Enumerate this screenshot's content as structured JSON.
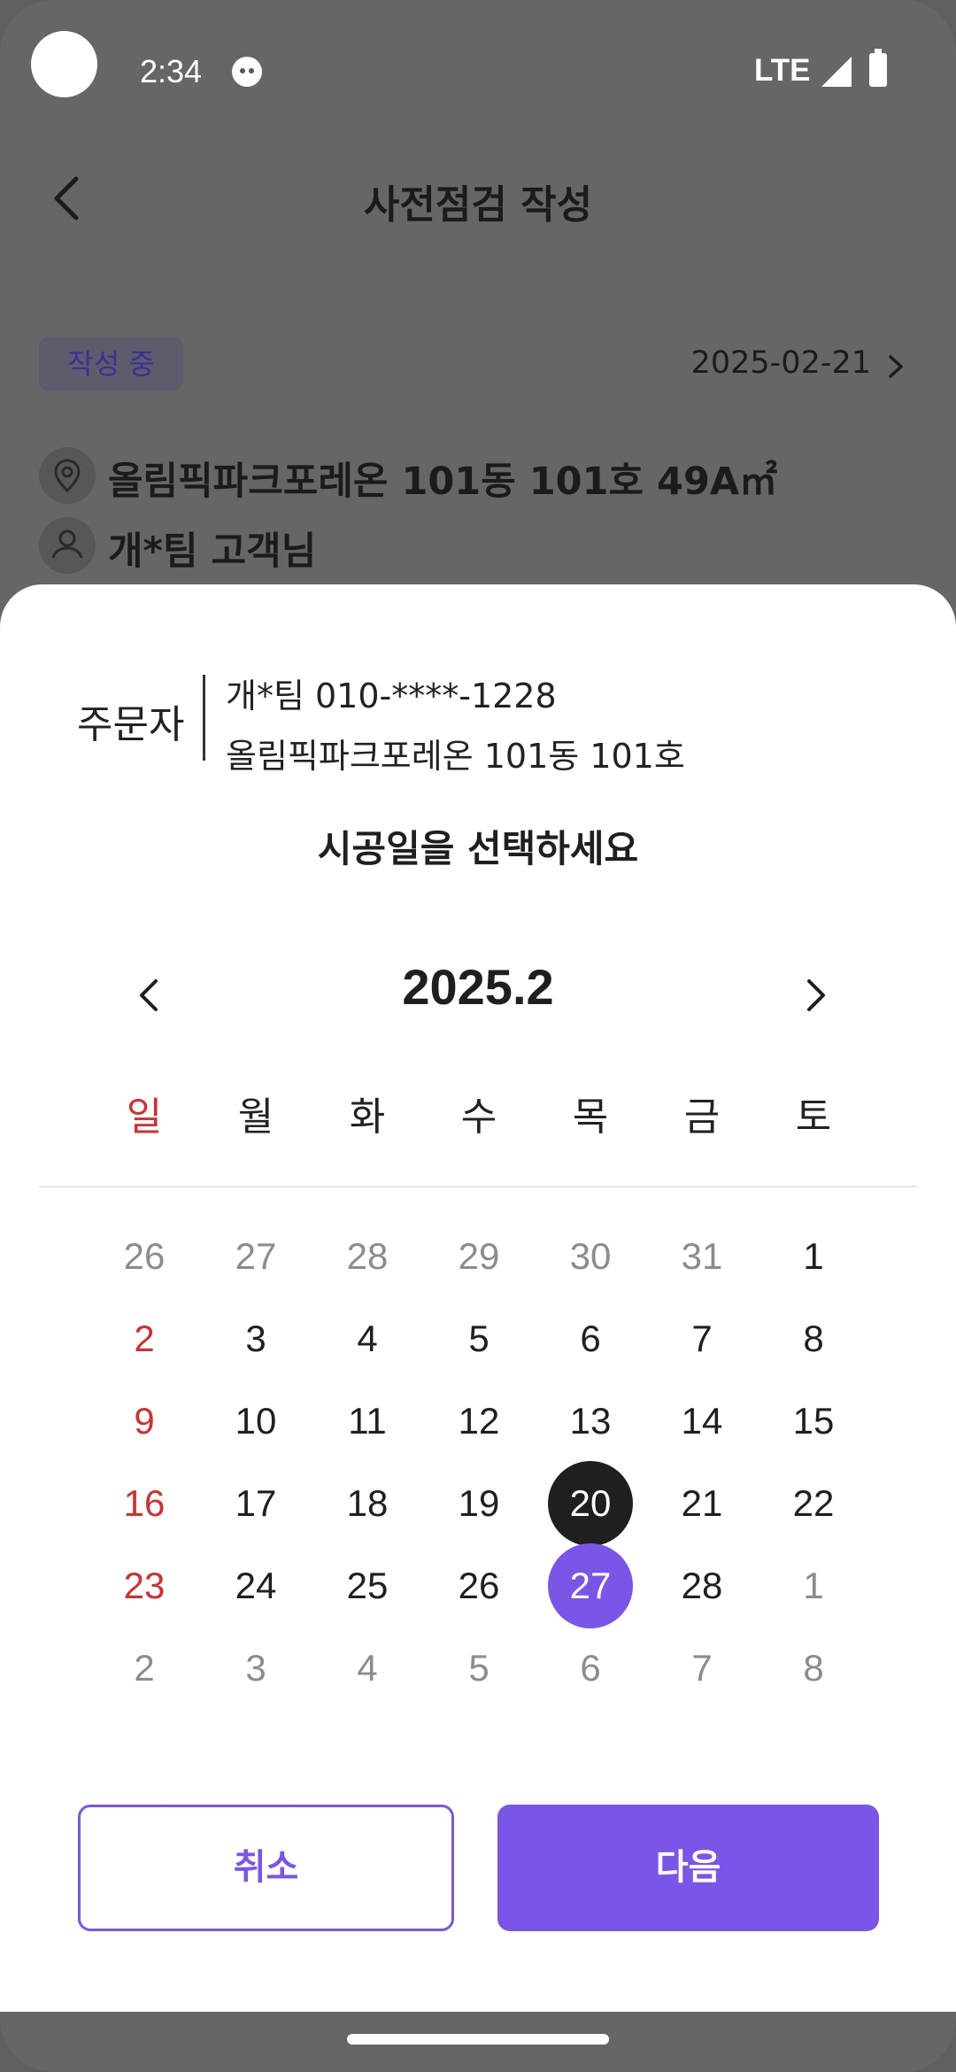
{
  "status_bar": {
    "time": "2:34",
    "network": "LTE"
  },
  "header": {
    "title": "사전점검 작성"
  },
  "inspection": {
    "status_badge": "작성 중",
    "date": "2025-02-21",
    "address": "올림픽파크포레온 101동 101호 49A㎡",
    "customer": "개*팀 고객님"
  },
  "sheet": {
    "orderer_label": "주문자",
    "orderer_line1": "개*팀 010-****-1228",
    "orderer_line2": "올림픽파크포레온 101동 101호",
    "prompt": "시공일을 선택하세요",
    "month_label": "2025.2",
    "weekdays": [
      "일",
      "월",
      "화",
      "수",
      "목",
      "금",
      "토"
    ],
    "weeks": [
      [
        "26",
        "27",
        "28",
        "29",
        "30",
        "31",
        "1"
      ],
      [
        "2",
        "3",
        "4",
        "5",
        "6",
        "7",
        "8"
      ],
      [
        "9",
        "10",
        "11",
        "12",
        "13",
        "14",
        "15"
      ],
      [
        "16",
        "17",
        "18",
        "19",
        "20",
        "21",
        "22"
      ],
      [
        "23",
        "24",
        "25",
        "26",
        "27",
        "28",
        "1"
      ],
      [
        "2",
        "3",
        "4",
        "5",
        "6",
        "7",
        "8"
      ]
    ],
    "cancel_label": "취소",
    "next_label": "다음"
  },
  "colors": {
    "accent": "#7b55ea",
    "sunday": "#d32f2f",
    "today": "#1f1f1f",
    "muted": "#8c8c8c",
    "scrim": "#666666"
  }
}
